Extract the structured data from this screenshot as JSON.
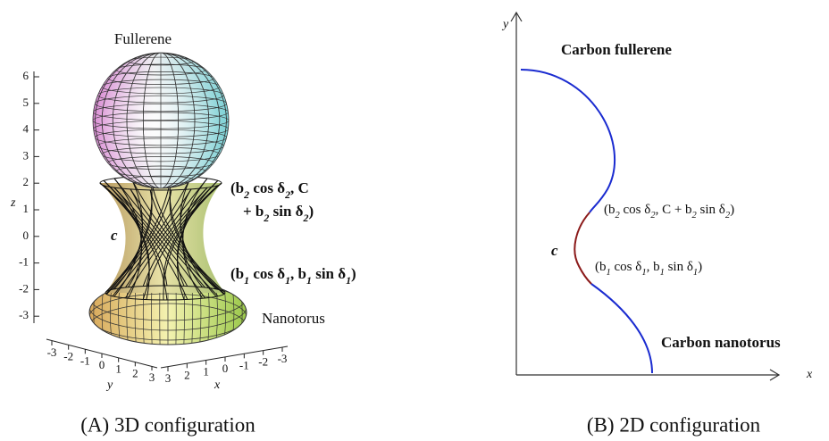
{
  "panel_a": {
    "top_label": "Fullerene",
    "bottom_label": "Nanotorus",
    "z_axis_label": "z",
    "z_ticks": [
      "6",
      "5",
      "4",
      "3",
      "2",
      "1",
      "0",
      "-1",
      "-2",
      "-3"
    ],
    "y_axis_label": "y",
    "y_ticks": [
      "-3",
      "-2",
      "-1",
      "0",
      "1",
      "2",
      "3"
    ],
    "x_axis_label": "x",
    "x_ticks": [
      "3",
      "2",
      "1",
      "0",
      "-1",
      "-2",
      "-3"
    ],
    "curve_label": "c",
    "upper_point_line1": [
      "(b",
      "2",
      " cos δ",
      "2",
      ", C"
    ],
    "upper_point_line2": [
      "+ b",
      "2",
      " sin δ",
      "2",
      ")"
    ],
    "lower_point": [
      "(b",
      "1",
      " cos δ",
      "1",
      ", b",
      "1",
      " sin δ",
      "1",
      ")"
    ],
    "caption": "(A) 3D configuration"
  },
  "panel_b": {
    "y_axis_label": "y",
    "x_axis_label": "x",
    "top_label": "Carbon fullerene",
    "bottom_label": "Carbon nanotorus",
    "curve_label": "c",
    "upper_point": [
      "(b",
      "2",
      " cos δ",
      "2",
      ", C + b",
      "2",
      " sin δ",
      "2",
      ")"
    ],
    "lower_point": [
      "(b",
      "1",
      " cos δ",
      "1",
      ", b",
      "1",
      " sin δ",
      "1",
      ")"
    ],
    "caption": "(B) 2D configuration"
  }
}
